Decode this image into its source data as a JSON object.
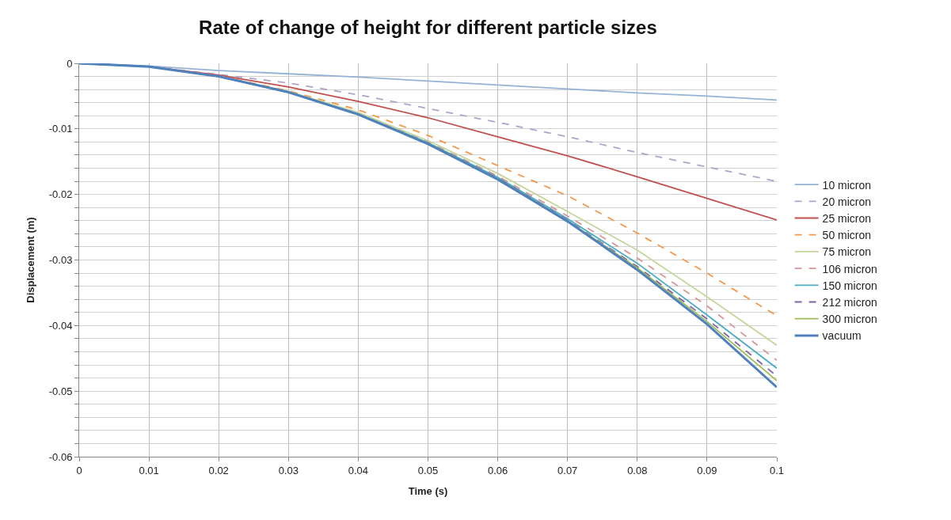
{
  "chart_data": {
    "type": "line",
    "title": "Rate of change of height for different particle sizes",
    "xlabel": "Time (s)",
    "ylabel": "Displacement (m)",
    "x": [
      0,
      0.01,
      0.02,
      0.03,
      0.04,
      0.05,
      0.06,
      0.07,
      0.08,
      0.09,
      0.1
    ],
    "series": [
      {
        "name": "10 micron",
        "color": "#95b3d7",
        "line_style": "solid",
        "values": [
          0,
          -0.0004,
          -0.0011,
          -0.0016,
          -0.0021,
          -0.0027,
          -0.0033,
          -0.0039,
          -0.0045,
          -0.005,
          -0.0056
        ]
      },
      {
        "name": "20 micron",
        "color": "#b3a2c7",
        "line_style": "dashed",
        "values": [
          0,
          -0.0005,
          -0.0017,
          -0.003,
          -0.0048,
          -0.0069,
          -0.009,
          -0.0112,
          -0.0136,
          -0.0158,
          -0.018
        ]
      },
      {
        "name": "25 micron",
        "color": "#c0504d",
        "line_style": "solid",
        "values": [
          0,
          -0.0005,
          -0.0018,
          -0.0036,
          -0.0058,
          -0.0083,
          -0.0112,
          -0.0141,
          -0.0173,
          -0.0206,
          -0.0239
        ]
      },
      {
        "name": "50 micron",
        "color": "#f79646",
        "line_style": "dashed",
        "values": [
          0,
          -0.0005,
          -0.0019,
          -0.0042,
          -0.0071,
          -0.011,
          -0.0156,
          -0.0202,
          -0.0259,
          -0.032,
          -0.0385
        ]
      },
      {
        "name": "75 micron",
        "color": "#c3d69b",
        "line_style": "solid",
        "values": [
          0,
          -0.0005,
          -0.002,
          -0.0043,
          -0.0075,
          -0.0118,
          -0.0168,
          -0.0226,
          -0.0285,
          -0.0356,
          -0.043
        ]
      },
      {
        "name": "106 micron",
        "color": "#d99694",
        "line_style": "dashed",
        "values": [
          0,
          -0.0005,
          -0.002,
          -0.0044,
          -0.0077,
          -0.012,
          -0.0172,
          -0.0233,
          -0.0297,
          -0.037,
          -0.0453
        ]
      },
      {
        "name": "150 micron",
        "color": "#4bacc6",
        "line_style": "solid",
        "values": [
          0,
          -0.0005,
          -0.002,
          -0.0044,
          -0.0077,
          -0.0121,
          -0.0174,
          -0.0237,
          -0.0305,
          -0.0384,
          -0.0465
        ]
      },
      {
        "name": "212 micron",
        "color": "#8064a2",
        "line_style": "dashed",
        "values": [
          0,
          -0.0005,
          -0.002,
          -0.0044,
          -0.0078,
          -0.0122,
          -0.0175,
          -0.0239,
          -0.031,
          -0.039,
          -0.0477
        ]
      },
      {
        "name": "300 micron",
        "color": "#9bbb59",
        "line_style": "solid",
        "values": [
          null,
          null,
          -0.002,
          -0.0044,
          -0.0078,
          -0.0122,
          -0.0176,
          -0.024,
          -0.0312,
          -0.0394,
          -0.0484
        ]
      },
      {
        "name": "vacuum",
        "color": "#4f81bd",
        "line_style": "solid",
        "values": [
          0,
          -0.0005,
          -0.002,
          -0.0044,
          -0.0078,
          -0.0123,
          -0.0177,
          -0.0241,
          -0.0315,
          -0.0398,
          -0.0494
        ]
      }
    ],
    "xlim": [
      0,
      0.1
    ],
    "xticks": [
      0,
      0.01,
      0.02,
      0.03,
      0.04,
      0.05,
      0.06,
      0.07,
      0.08,
      0.09,
      0.1
    ],
    "ylim": [
      -0.06,
      0
    ],
    "yticks": [
      0,
      {
        "value": -0.002,
        "label": null
      },
      {
        "value": -0.004,
        "label": null
      },
      {
        "value": -0.006,
        "label": null
      },
      {
        "value": -0.008,
        "label": null
      },
      -0.01,
      {
        "value": -0.012,
        "label": null
      },
      {
        "value": -0.014,
        "label": null
      },
      {
        "value": -0.016,
        "label": null
      },
      {
        "value": -0.018,
        "label": null
      },
      -0.02,
      {
        "value": -0.022,
        "label": null
      },
      {
        "value": -0.024,
        "label": null
      },
      {
        "value": -0.026,
        "label": null
      },
      {
        "value": -0.028,
        "label": null
      },
      -0.03,
      {
        "value": -0.032,
        "label": null
      },
      {
        "value": -0.034,
        "label": null
      },
      {
        "value": -0.036,
        "label": null
      },
      {
        "value": -0.038,
        "label": null
      },
      -0.04,
      {
        "value": -0.042,
        "label": null
      },
      {
        "value": -0.044,
        "label": null
      },
      {
        "value": -0.046,
        "label": null
      },
      {
        "value": -0.048,
        "label": null
      },
      -0.05,
      {
        "value": -0.052,
        "label": null
      },
      {
        "value": -0.054,
        "label": null
      },
      {
        "value": -0.056,
        "label": null
      },
      {
        "value": -0.058,
        "label": null
      },
      -0.06
    ],
    "grid": true,
    "legend": "right",
    "marker": "none"
  }
}
